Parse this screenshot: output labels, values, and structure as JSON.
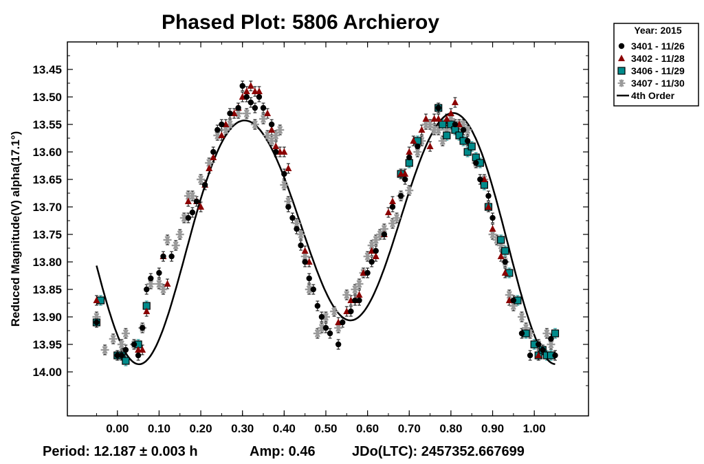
{
  "chart_data": {
    "type": "scatter",
    "title": "Phased Plot: 5806 Archieroy",
    "ylabel": "Reduced Magnitude(V) alpha(17.1°)",
    "xlabel": "",
    "xlim": [
      -0.12,
      1.13
    ],
    "ylim": [
      13.4,
      14.08
    ],
    "y_inverted": true,
    "x_ticks": [
      "0.00",
      "0.10",
      "0.20",
      "0.30",
      "0.40",
      "0.50",
      "0.60",
      "0.70",
      "0.80",
      "0.90",
      "1.00"
    ],
    "y_ticks": [
      "13.45",
      "13.50",
      "13.55",
      "13.60",
      "13.65",
      "13.70",
      "13.75",
      "13.80",
      "13.85",
      "13.90",
      "13.95",
      "14.00"
    ],
    "grid": false,
    "legend_placement": "top-right, outside plot",
    "legend": {
      "title": "Year: 2015",
      "entries": [
        {
          "label": "3401 - 11/26",
          "marker": "circle",
          "color": "#000000"
        },
        {
          "label": "3402 - 11/28",
          "marker": "triangle",
          "color": "#8b0000"
        },
        {
          "label": "3406 - 11/29",
          "marker": "square",
          "color": "#008b8b"
        },
        {
          "label": "3407 - 11/30",
          "marker": "asterisk",
          "color": "#9a9a9a"
        },
        {
          "label": "4th Order",
          "marker": "line",
          "color": "#000000"
        }
      ]
    },
    "fit": {
      "name": "4th Order",
      "mean": 13.735,
      "a1": 0.02,
      "b1": -0.025,
      "a2": -0.01,
      "b2": 0.2,
      "a3": 0.01,
      "b3": 0.01,
      "a4": 0.005,
      "b4": 0.005
    },
    "series": [
      {
        "name": "3401 - 11/26",
        "marker": "circle",
        "x": [
          -0.05,
          0.0,
          0.01,
          0.02,
          0.04,
          0.05,
          0.06,
          0.07,
          0.08,
          0.1,
          0.11,
          0.13,
          0.17,
          0.18,
          0.19,
          0.21,
          0.23,
          0.24,
          0.25,
          0.27,
          0.29,
          0.3,
          0.31,
          0.32,
          0.33,
          0.34,
          0.35,
          0.37,
          0.38,
          0.4,
          0.41,
          0.42,
          0.43,
          0.44,
          0.45,
          0.46,
          0.47,
          0.48,
          0.49,
          0.5,
          0.51,
          0.53,
          0.54,
          0.56,
          0.57,
          0.58,
          0.6,
          0.61,
          0.62,
          0.64,
          0.66,
          0.68,
          0.69,
          0.7,
          0.72,
          0.77,
          0.81,
          0.83,
          0.84,
          0.86,
          0.87,
          0.89,
          0.9,
          0.93,
          0.95,
          0.97,
          0.99,
          1.01,
          1.02,
          1.04,
          1.05
        ],
        "y": [
          13.91,
          13.97,
          13.97,
          13.96,
          13.95,
          13.97,
          13.92,
          13.85,
          13.83,
          13.82,
          13.79,
          13.79,
          13.72,
          13.71,
          13.69,
          13.66,
          13.6,
          13.56,
          13.55,
          13.53,
          13.52,
          13.48,
          13.5,
          13.51,
          13.52,
          13.5,
          13.52,
          13.55,
          13.6,
          13.64,
          13.7,
          13.72,
          13.74,
          13.77,
          13.8,
          13.83,
          13.85,
          13.88,
          13.9,
          13.92,
          13.93,
          13.95,
          13.91,
          13.89,
          13.87,
          13.87,
          13.82,
          13.8,
          13.78,
          13.75,
          13.7,
          13.68,
          13.65,
          13.61,
          13.59,
          13.52,
          13.55,
          13.56,
          13.58,
          13.62,
          13.65,
          13.68,
          13.72,
          13.8,
          13.87,
          13.93,
          13.97,
          13.95,
          13.96,
          13.94,
          13.97
        ]
      },
      {
        "name": "3402 - 11/28",
        "marker": "triangle",
        "x": [
          -0.05,
          0.05,
          0.06,
          0.07,
          0.11,
          0.12,
          0.17,
          0.19,
          0.2,
          0.21,
          0.22,
          0.23,
          0.25,
          0.26,
          0.28,
          0.29,
          0.3,
          0.31,
          0.32,
          0.33,
          0.34,
          0.36,
          0.37,
          0.38,
          0.39,
          0.4,
          0.41,
          0.45,
          0.46,
          0.53,
          0.55,
          0.56,
          0.57,
          0.58,
          0.59,
          0.61,
          0.62,
          0.64,
          0.65,
          0.66,
          0.68,
          0.69,
          0.7,
          0.71,
          0.73,
          0.74,
          0.75,
          0.76,
          0.77,
          0.79,
          0.8,
          0.81,
          0.82,
          0.88,
          0.89,
          0.9,
          0.92,
          0.93,
          0.94,
          1.01
        ],
        "y": [
          13.87,
          13.96,
          13.96,
          13.89,
          13.79,
          13.84,
          13.69,
          13.69,
          13.7,
          13.66,
          13.63,
          13.61,
          13.57,
          13.55,
          13.53,
          13.52,
          13.5,
          13.49,
          13.48,
          13.49,
          13.49,
          13.53,
          13.56,
          13.59,
          13.6,
          13.6,
          13.63,
          13.78,
          13.8,
          13.91,
          13.89,
          13.87,
          13.87,
          13.86,
          13.82,
          13.78,
          13.79,
          13.75,
          13.71,
          13.69,
          13.64,
          13.64,
          13.6,
          13.58,
          13.56,
          13.54,
          13.59,
          13.54,
          13.54,
          13.54,
          13.53,
          13.51,
          13.55,
          13.65,
          13.7,
          13.74,
          13.79,
          13.82,
          13.87,
          13.97
        ]
      },
      {
        "name": "3406 - 11/29",
        "marker": "square",
        "x": [
          -0.05,
          -0.04,
          0.0,
          0.01,
          0.02,
          0.05,
          0.07,
          0.68,
          0.7,
          0.72,
          0.77,
          0.78,
          0.79,
          0.8,
          0.81,
          0.82,
          0.83,
          0.84,
          0.85,
          0.86,
          0.87,
          0.88,
          0.89,
          0.92,
          0.93,
          0.94,
          0.96,
          0.98,
          1.0,
          1.01,
          1.02,
          1.03,
          1.04,
          1.05
        ],
        "y": [
          13.91,
          13.87,
          13.97,
          13.97,
          13.98,
          13.95,
          13.88,
          13.64,
          13.62,
          13.58,
          13.52,
          13.55,
          13.57,
          13.55,
          13.56,
          13.57,
          13.58,
          13.6,
          13.59,
          13.61,
          13.62,
          13.66,
          13.7,
          13.76,
          13.78,
          13.82,
          13.87,
          13.93,
          13.95,
          13.97,
          13.96,
          13.97,
          13.97,
          13.93
        ]
      },
      {
        "name": "3407 - 11/30",
        "marker": "asterisk",
        "x": [
          -0.05,
          -0.03,
          -0.01,
          0.01,
          0.02,
          0.04,
          0.06,
          0.08,
          0.1,
          0.11,
          0.12,
          0.14,
          0.15,
          0.16,
          0.17,
          0.18,
          0.2,
          0.22,
          0.24,
          0.26,
          0.27,
          0.29,
          0.31,
          0.33,
          0.35,
          0.36,
          0.37,
          0.38,
          0.39,
          0.4,
          0.41,
          0.43,
          0.44,
          0.45,
          0.46,
          0.48,
          0.49,
          0.5,
          0.52,
          0.53,
          0.55,
          0.57,
          0.58,
          0.59,
          0.6,
          0.61,
          0.62,
          0.63,
          0.64,
          0.66,
          0.67,
          0.68,
          0.7,
          0.72,
          0.73,
          0.74,
          0.75,
          0.76,
          0.77,
          0.78,
          0.79,
          0.8,
          0.81,
          0.82,
          0.83,
          0.84,
          0.86,
          0.88,
          0.9,
          0.91,
          0.92,
          0.93,
          0.94,
          0.95,
          0.97,
          0.98,
          0.99,
          1.01,
          1.02,
          1.03,
          1.04
        ],
        "y": [
          13.9,
          13.96,
          13.94,
          13.95,
          13.93,
          13.95,
          13.92,
          13.84,
          13.84,
          13.85,
          13.76,
          13.77,
          13.75,
          13.72,
          13.68,
          13.68,
          13.65,
          13.62,
          13.57,
          13.56,
          13.55,
          13.53,
          13.53,
          13.55,
          13.54,
          13.57,
          13.58,
          13.57,
          13.56,
          13.66,
          13.69,
          13.73,
          13.75,
          13.79,
          13.85,
          13.93,
          13.92,
          13.9,
          13.89,
          13.92,
          13.86,
          13.85,
          13.84,
          13.82,
          13.79,
          13.77,
          13.76,
          13.75,
          13.74,
          13.73,
          13.72,
          13.68,
          13.67,
          13.6,
          13.58,
          13.55,
          13.55,
          13.56,
          13.56,
          13.58,
          13.56,
          13.54,
          13.55,
          13.55,
          13.55,
          13.56,
          13.62,
          13.65,
          13.75,
          13.76,
          13.77,
          13.8,
          13.86,
          13.88,
          13.9,
          13.92,
          13.93,
          13.95,
          13.96,
          13.93,
          13.95
        ]
      }
    ]
  },
  "footer": {
    "period": "Period: 12.187 ± 0.003 h",
    "amp": "Amp: 0.46",
    "jdo": "JDo(LTC): 2457352.667699"
  },
  "colors": {
    "circle": "#000000",
    "triangle": "#8b0000",
    "square": "#008b8b",
    "asterisk": "#9a9a9a",
    "fit": "#000000",
    "errorbar_square": "#008b8b"
  }
}
